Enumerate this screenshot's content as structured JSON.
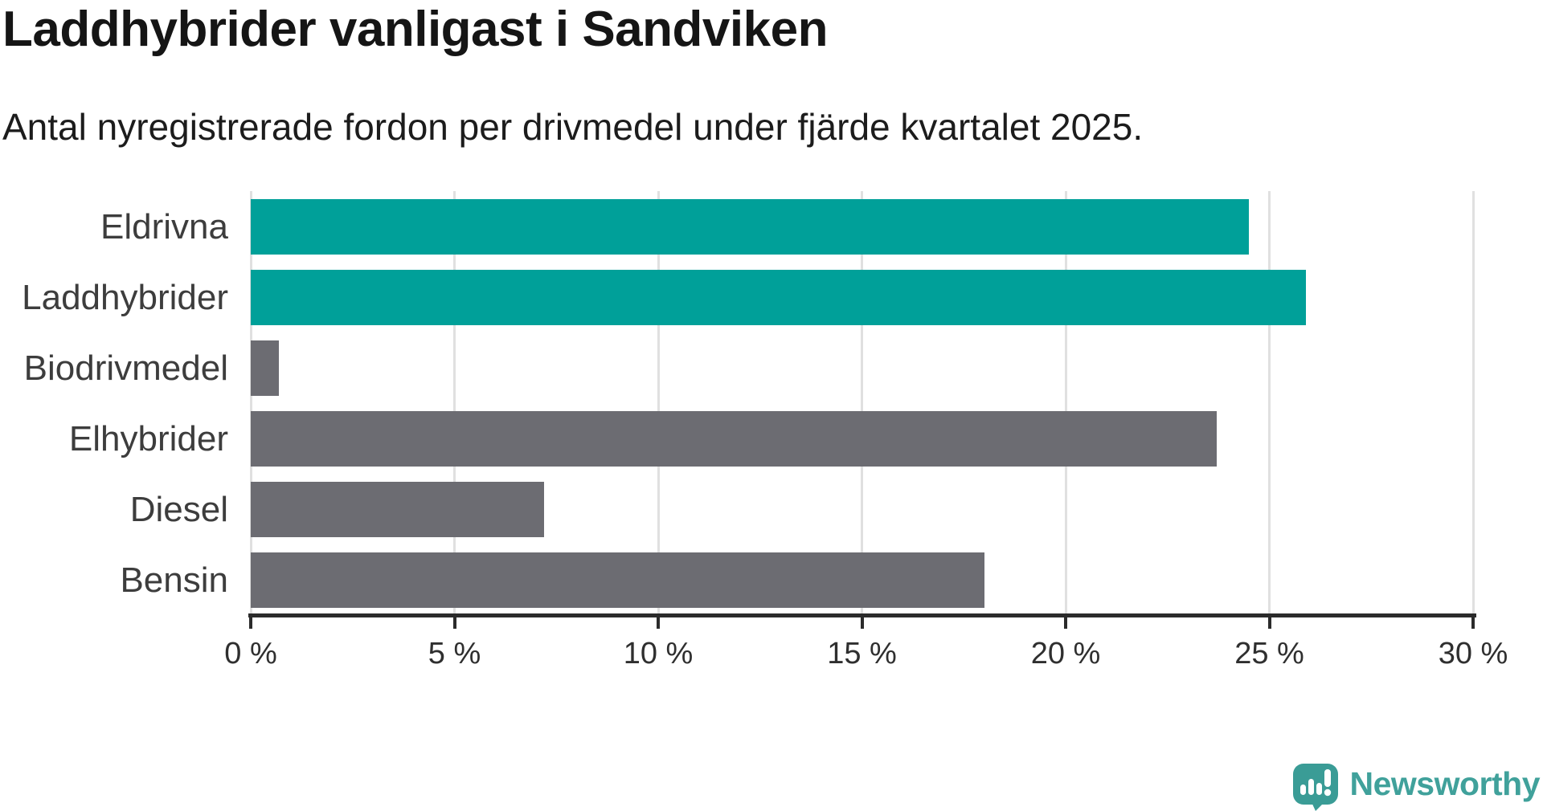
{
  "header": {
    "title": "Laddhybrider vanligast i Sandviken",
    "subtitle": "Antal nyregistrerade fordon per drivmedel under fjärde kvartalet 2025."
  },
  "chart_data": {
    "type": "bar",
    "orientation": "horizontal",
    "title": "Laddhybrider vanligast i Sandviken",
    "subtitle": "Antal nyregistrerade fordon per drivmedel under fjärde kvartalet 2025.",
    "categories": [
      "Eldrivna",
      "Laddhybrider",
      "Biodrivmedel",
      "Elhybrider",
      "Diesel",
      "Bensin"
    ],
    "values": [
      24.5,
      25.9,
      0.7,
      23.7,
      7.2,
      18
    ],
    "unit": "%",
    "xlim": [
      0,
      30
    ],
    "x_ticks": [
      0,
      5,
      10,
      15,
      20,
      25,
      30
    ],
    "x_tick_labels": [
      "0 %",
      "5 %",
      "10 %",
      "15 %",
      "20 %",
      "25 %",
      "30 %"
    ],
    "grid": "vertical",
    "legend": "none",
    "colors": {
      "highlight": "#00a099",
      "default": "#6c6c72",
      "gridline": "#e0e0e0",
      "axis": "#2b2b2b"
    },
    "bar_colors": [
      "#00a099",
      "#00a099",
      "#6c6c72",
      "#6c6c72",
      "#6c6c72",
      "#6c6c72"
    ]
  },
  "footer": {
    "brand": "Newsworthy",
    "brand_text_color": "#40a19b",
    "brand_icon": "newsworthy-speech-bubble-barchart-icon",
    "brand_icon_color": "#3a9c96"
  }
}
